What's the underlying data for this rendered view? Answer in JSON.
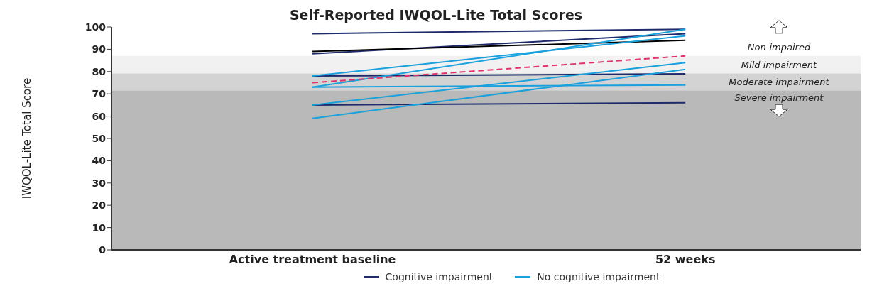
{
  "chart_data": {
    "type": "line",
    "title": "Self-Reported IWQOL-Lite Total Scores",
    "ylabel": "IWQOL-Lite Total Score",
    "categories": [
      "Active treatment baseline",
      "52 weeks"
    ],
    "ylim": [
      0,
      100
    ],
    "yticks": [
      0,
      10,
      20,
      30,
      40,
      50,
      60,
      70,
      80,
      90,
      100
    ],
    "grid": false,
    "legend": "bottom",
    "marker": "none",
    "bands": [
      {
        "axis": "y",
        "from": 0,
        "to": 71.6,
        "label": "Severe impairment",
        "color": "#b9b9b9"
      },
      {
        "axis": "y",
        "from": 71.6,
        "to": 79.2,
        "label": "Moderate impairment",
        "color": "#d3d3d3"
      },
      {
        "axis": "y",
        "from": 79.2,
        "to": 87,
        "label": "Mild impairment",
        "color": "#f1f1f1"
      }
    ],
    "annotations": [
      "Non-impaired"
    ],
    "series": [
      {
        "name": "Cognitive impairment",
        "color": "#1f2a6b",
        "values": [
          97,
          99
        ]
      },
      {
        "color": "#1f2a6b",
        "values": [
          88,
          97
        ]
      },
      {
        "color": "#1f2a6b",
        "values": [
          78,
          79
        ]
      },
      {
        "color": "#1f2a6b",
        "values": [
          65,
          66
        ]
      },
      {
        "color": "#000000",
        "values": [
          89,
          94
        ]
      },
      {
        "name": "No cognitive impairment",
        "color": "#1aa0dc",
        "values": [
          78,
          96
        ]
      },
      {
        "color": "#1aa0dc",
        "values": [
          73,
          99
        ]
      },
      {
        "color": "#1aa0dc",
        "values": [
          73,
          74
        ]
      },
      {
        "color": "#1aa0dc",
        "values": [
          65,
          84
        ]
      },
      {
        "color": "#1aa0dc",
        "values": [
          59,
          81
        ]
      },
      {
        "color": "#e0336e",
        "values": [
          75,
          87
        ],
        "line_style": "dashed"
      }
    ]
  }
}
